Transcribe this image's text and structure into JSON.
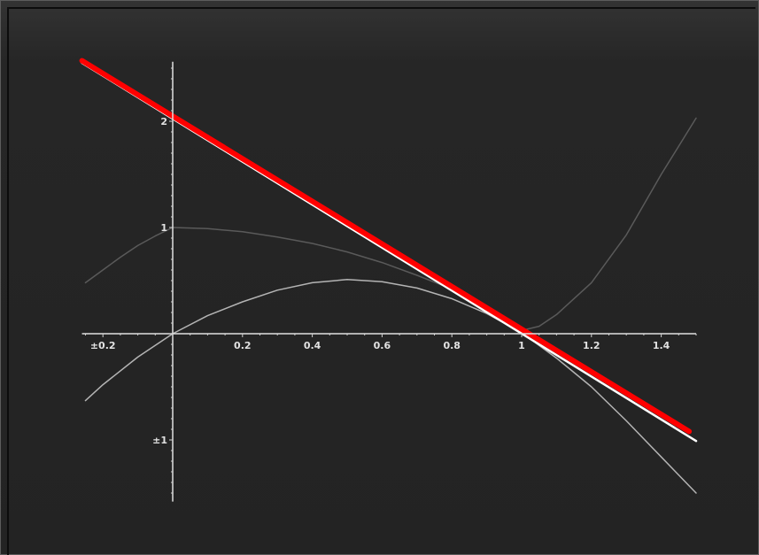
{
  "chart_data": {
    "type": "line",
    "title": "",
    "xlabel": "",
    "ylabel": "",
    "xlim": [
      -0.26,
      1.5
    ],
    "ylim": [
      -1.58,
      2.56
    ],
    "grid": false,
    "x_ticks": [
      {
        "value": -0.2,
        "label": "±0.2"
      },
      {
        "value": 0.2,
        "label": "0.2"
      },
      {
        "value": 0.4,
        "label": "0.4"
      },
      {
        "value": 0.6,
        "label": "0.6"
      },
      {
        "value": 0.8,
        "label": "0.8"
      },
      {
        "value": 1,
        "label": "1"
      },
      {
        "value": 1.2,
        "label": "1.2"
      },
      {
        "value": 1.4,
        "label": "1.4"
      }
    ],
    "y_ticks": [
      {
        "value": 2,
        "label": "2"
      },
      {
        "value": 1,
        "label": "1"
      },
      {
        "value": -1,
        "label": "±1"
      }
    ],
    "series": [
      {
        "color": "#5a5a5a",
        "width": 1.5,
        "x": [
          -0.25,
          -0.2,
          -0.15,
          -0.1,
          -0.05,
          0,
          0.1,
          0.2,
          0.3,
          0.4,
          0.5,
          0.6,
          0.7,
          0.8,
          0.9,
          1.0,
          1.05,
          1.1,
          1.2,
          1.3,
          1.4,
          1.5
        ],
        "y": [
          0.48,
          0.6,
          0.72,
          0.83,
          0.92,
          1.0,
          0.99,
          0.96,
          0.91,
          0.85,
          0.77,
          0.67,
          0.55,
          0.42,
          0.23,
          0.03,
          0.07,
          0.18,
          0.48,
          0.93,
          1.5,
          2.03
        ]
      },
      {
        "color": "#b4b4b4",
        "width": 1.5,
        "x": [
          -0.25,
          -0.2,
          -0.1,
          0,
          0.1,
          0.2,
          0.3,
          0.4,
          0.5,
          0.6,
          0.7,
          0.8,
          0.9,
          1.0,
          1.1,
          1.2,
          1.3,
          1.4,
          1.5
        ],
        "y": [
          -0.63,
          -0.48,
          -0.22,
          0.0,
          0.17,
          0.3,
          0.41,
          0.48,
          0.51,
          0.49,
          0.43,
          0.33,
          0.19,
          0.01,
          -0.23,
          -0.5,
          -0.82,
          -1.16,
          -1.5
        ]
      },
      {
        "color": "#ffffff",
        "width": 2.5,
        "x": [
          -0.26,
          1.5
        ],
        "y": [
          2.55,
          -1.01
        ]
      },
      {
        "color": "#ff0000",
        "width": 6,
        "x": [
          -0.26,
          1.48
        ],
        "y": [
          2.57,
          -0.92
        ]
      }
    ]
  }
}
